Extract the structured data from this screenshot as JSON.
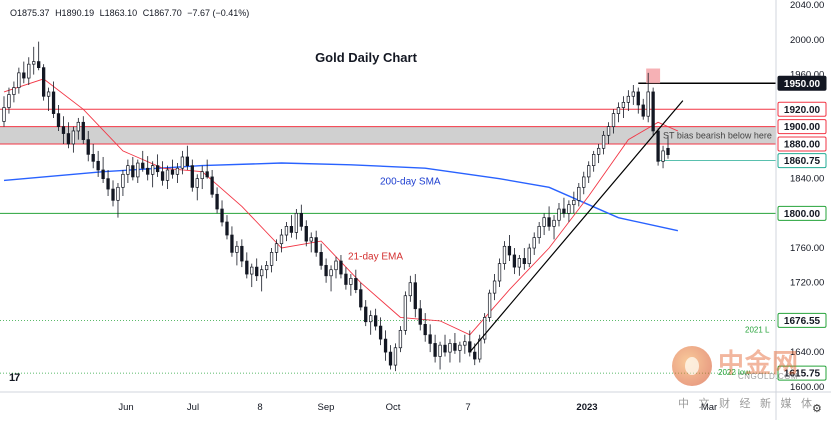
{
  "ohlc": {
    "open": "O1875.37",
    "high": "H1890.19",
    "low": "L1863.10",
    "close": "C1867.70",
    "change": "−7.67 (−0.41%)"
  },
  "tv_logo_label": "17",
  "watermark": {
    "cn": "中金网",
    "url": "CNGOLD.COM",
    "sub": "中 文 财 经 新 媒 体"
  },
  "colors": {
    "up": "#ffffff",
    "down": "#131722",
    "sma200": "#2962ff",
    "ema21": "#f23645",
    "resistance": "#f23645",
    "support": "#26a33a",
    "band": "#c8c8c8",
    "trend": "#000000",
    "marker": "#f4a3a8"
  },
  "chart_data": {
    "type": "candlestick",
    "title": "Gold Daily Chart",
    "x_ticks": [
      "Jun",
      "Jul",
      "8",
      "Sep",
      "Oct",
      "7",
      "2023",
      "Mar"
    ],
    "y_ticks": [
      2040,
      2000,
      1960,
      1920,
      1880,
      1840,
      1800,
      1760,
      1720,
      1680,
      1640,
      1600
    ],
    "ylim": [
      1594,
      2046
    ],
    "price_labels": [
      {
        "text": "1950.00",
        "value": 1950,
        "style": "dark"
      },
      {
        "text": "1920.00",
        "value": 1920,
        "style": "red"
      },
      {
        "text": "1900.00",
        "value": 1900,
        "style": "red"
      },
      {
        "text": "1880.00",
        "value": 1880,
        "style": "red"
      },
      {
        "text": "1860.75",
        "value": 1860.75,
        "style": "current"
      },
      {
        "text": "1800.00",
        "value": 1800,
        "style": "green"
      },
      {
        "text": "1676.55",
        "value": 1676.55,
        "style": "green"
      },
      {
        "text": "1615.75",
        "value": 1615.75,
        "style": "green"
      }
    ],
    "levels": [
      {
        "value": 1950,
        "type": "resistance"
      },
      {
        "value": 1920,
        "type": "resistance"
      },
      {
        "value": 1800,
        "type": "support"
      },
      {
        "value": 1676.55,
        "type": "dotted"
      },
      {
        "value": 1615.75,
        "type": "dotted"
      }
    ],
    "band": [
      1880,
      1900
    ],
    "annotations": [
      {
        "text": "ST bias bearish below here",
        "value": 1890
      },
      {
        "text": "200-day SMA",
        "value": 1837
      },
      {
        "text": "21-day EMA",
        "value": 1750
      },
      {
        "text": "2021 L",
        "value": 1666
      },
      {
        "text": "2022 low",
        "value": 1617
      }
    ],
    "ohlc_series": [
      [
        1906,
        1935,
        1900,
        1922
      ],
      [
        1922,
        1945,
        1915,
        1937
      ],
      [
        1937,
        1952,
        1928,
        1945
      ],
      [
        1945,
        1968,
        1938,
        1962
      ],
      [
        1962,
        1975,
        1950,
        1956
      ],
      [
        1956,
        1980,
        1948,
        1972
      ],
      [
        1972,
        1992,
        1960,
        1975
      ],
      [
        1975,
        1998,
        1965,
        1968
      ],
      [
        1968,
        1972,
        1930,
        1935
      ],
      [
        1935,
        1945,
        1918,
        1940
      ],
      [
        1940,
        1952,
        1910,
        1915
      ],
      [
        1915,
        1925,
        1895,
        1900
      ],
      [
        1900,
        1912,
        1880,
        1892
      ],
      [
        1892,
        1905,
        1875,
        1880
      ],
      [
        1880,
        1900,
        1870,
        1895
      ],
      [
        1895,
        1910,
        1885,
        1905
      ],
      [
        1905,
        1912,
        1880,
        1885
      ],
      [
        1885,
        1895,
        1860,
        1868
      ],
      [
        1868,
        1880,
        1852,
        1860
      ],
      [
        1860,
        1872,
        1842,
        1850
      ],
      [
        1850,
        1865,
        1835,
        1840
      ],
      [
        1840,
        1850,
        1820,
        1828
      ],
      [
        1828,
        1838,
        1808,
        1815
      ],
      [
        1815,
        1835,
        1795,
        1830
      ],
      [
        1830,
        1850,
        1820,
        1845
      ],
      [
        1845,
        1862,
        1835,
        1855
      ],
      [
        1855,
        1865,
        1838,
        1842
      ],
      [
        1842,
        1862,
        1835,
        1858
      ],
      [
        1858,
        1872,
        1848,
        1852
      ],
      [
        1852,
        1866,
        1838,
        1845
      ],
      [
        1845,
        1860,
        1830,
        1855
      ],
      [
        1855,
        1868,
        1842,
        1848
      ],
      [
        1848,
        1860,
        1832,
        1838
      ],
      [
        1838,
        1855,
        1828,
        1850
      ],
      [
        1850,
        1862,
        1840,
        1845
      ],
      [
        1845,
        1858,
        1835,
        1852
      ],
      [
        1852,
        1872,
        1845,
        1865
      ],
      [
        1865,
        1878,
        1850,
        1855
      ],
      [
        1855,
        1862,
        1825,
        1830
      ],
      [
        1830,
        1845,
        1815,
        1840
      ],
      [
        1840,
        1855,
        1828,
        1848
      ],
      [
        1848,
        1862,
        1840,
        1842
      ],
      [
        1842,
        1850,
        1818,
        1822
      ],
      [
        1822,
        1830,
        1800,
        1805
      ],
      [
        1805,
        1815,
        1785,
        1790
      ],
      [
        1790,
        1798,
        1770,
        1775
      ],
      [
        1775,
        1785,
        1750,
        1755
      ],
      [
        1755,
        1768,
        1740,
        1762
      ],
      [
        1762,
        1770,
        1738,
        1745
      ],
      [
        1745,
        1755,
        1725,
        1730
      ],
      [
        1730,
        1742,
        1715,
        1738
      ],
      [
        1738,
        1748,
        1722,
        1728
      ],
      [
        1728,
        1740,
        1710,
        1735
      ],
      [
        1735,
        1745,
        1725,
        1740
      ],
      [
        1740,
        1760,
        1732,
        1755
      ],
      [
        1755,
        1770,
        1745,
        1765
      ],
      [
        1765,
        1782,
        1755,
        1775
      ],
      [
        1775,
        1790,
        1768,
        1785
      ],
      [
        1785,
        1798,
        1772,
        1778
      ],
      [
        1778,
        1805,
        1770,
        1800
      ],
      [
        1800,
        1810,
        1780,
        1785
      ],
      [
        1785,
        1792,
        1762,
        1768
      ],
      [
        1768,
        1778,
        1755,
        1772
      ],
      [
        1772,
        1780,
        1750,
        1755
      ],
      [
        1755,
        1765,
        1735,
        1740
      ],
      [
        1740,
        1748,
        1720,
        1728
      ],
      [
        1728,
        1740,
        1710,
        1735
      ],
      [
        1735,
        1750,
        1725,
        1745
      ],
      [
        1745,
        1752,
        1725,
        1730
      ],
      [
        1730,
        1738,
        1712,
        1718
      ],
      [
        1718,
        1730,
        1705,
        1725
      ],
      [
        1725,
        1735,
        1708,
        1712
      ],
      [
        1712,
        1720,
        1688,
        1692
      ],
      [
        1692,
        1700,
        1670,
        1675
      ],
      [
        1675,
        1688,
        1660,
        1682
      ],
      [
        1682,
        1690,
        1665,
        1670
      ],
      [
        1670,
        1680,
        1648,
        1655
      ],
      [
        1655,
        1665,
        1630,
        1640
      ],
      [
        1640,
        1648,
        1620,
        1625
      ],
      [
        1625,
        1650,
        1618,
        1645
      ],
      [
        1645,
        1670,
        1640,
        1665
      ],
      [
        1665,
        1710,
        1660,
        1705
      ],
      [
        1705,
        1728,
        1698,
        1720
      ],
      [
        1720,
        1730,
        1680,
        1690
      ],
      [
        1690,
        1700,
        1665,
        1672
      ],
      [
        1672,
        1685,
        1652,
        1660
      ],
      [
        1660,
        1672,
        1640,
        1650
      ],
      [
        1650,
        1660,
        1628,
        1635
      ],
      [
        1635,
        1652,
        1620,
        1648
      ],
      [
        1648,
        1660,
        1635,
        1640
      ],
      [
        1640,
        1655,
        1628,
        1650
      ],
      [
        1650,
        1662,
        1638,
        1642
      ],
      [
        1642,
        1652,
        1628,
        1648
      ],
      [
        1648,
        1660,
        1638,
        1652
      ],
      [
        1652,
        1665,
        1635,
        1640
      ],
      [
        1640,
        1650,
        1625,
        1632
      ],
      [
        1632,
        1660,
        1628,
        1655
      ],
      [
        1655,
        1685,
        1650,
        1680
      ],
      [
        1680,
        1712,
        1675,
        1708
      ],
      [
        1708,
        1730,
        1700,
        1722
      ],
      [
        1722,
        1748,
        1715,
        1742
      ],
      [
        1742,
        1768,
        1735,
        1762
      ],
      [
        1762,
        1775,
        1745,
        1752
      ],
      [
        1752,
        1760,
        1730,
        1738
      ],
      [
        1738,
        1752,
        1728,
        1748
      ],
      [
        1748,
        1760,
        1735,
        1742
      ],
      [
        1742,
        1765,
        1738,
        1760
      ],
      [
        1760,
        1778,
        1752,
        1772
      ],
      [
        1772,
        1790,
        1765,
        1785
      ],
      [
        1785,
        1800,
        1775,
        1795
      ],
      [
        1795,
        1808,
        1780,
        1785
      ],
      [
        1785,
        1798,
        1770,
        1792
      ],
      [
        1792,
        1812,
        1785,
        1805
      ],
      [
        1805,
        1818,
        1795,
        1800
      ],
      [
        1800,
        1815,
        1790,
        1810
      ],
      [
        1810,
        1825,
        1800,
        1815
      ],
      [
        1815,
        1835,
        1808,
        1830
      ],
      [
        1830,
        1848,
        1822,
        1842
      ],
      [
        1842,
        1860,
        1835,
        1855
      ],
      [
        1855,
        1872,
        1848,
        1868
      ],
      [
        1868,
        1880,
        1858,
        1875
      ],
      [
        1875,
        1895,
        1868,
        1890
      ],
      [
        1890,
        1905,
        1880,
        1900
      ],
      [
        1900,
        1920,
        1892,
        1915
      ],
      [
        1915,
        1928,
        1905,
        1922
      ],
      [
        1922,
        1935,
        1910,
        1928
      ],
      [
        1928,
        1942,
        1918,
        1935
      ],
      [
        1935,
        1948,
        1925,
        1940
      ],
      [
        1940,
        1945,
        1915,
        1925
      ],
      [
        1925,
        1932,
        1908,
        1912
      ],
      [
        1912,
        1962,
        1905,
        1940
      ],
      [
        1940,
        1945,
        1890,
        1895
      ],
      [
        1895,
        1898,
        1855,
        1860
      ],
      [
        1860,
        1878,
        1852,
        1872
      ],
      [
        1875,
        1890,
        1863,
        1867.7
      ]
    ],
    "sma200": [
      [
        0,
        1838
      ],
      [
        20,
        1848
      ],
      [
        40,
        1855
      ],
      [
        56,
        1858
      ],
      [
        70,
        1856
      ],
      [
        85,
        1852
      ],
      [
        100,
        1840
      ],
      [
        110,
        1830
      ],
      [
        118,
        1810
      ],
      [
        124,
        1795
      ],
      [
        136,
        1780
      ]
    ],
    "ema21": [
      [
        0,
        1940
      ],
      [
        8,
        1955
      ],
      [
        16,
        1920
      ],
      [
        24,
        1872
      ],
      [
        32,
        1852
      ],
      [
        40,
        1848
      ],
      [
        48,
        1808
      ],
      [
        56,
        1760
      ],
      [
        64,
        1768
      ],
      [
        72,
        1720
      ],
      [
        80,
        1680
      ],
      [
        88,
        1676
      ],
      [
        94,
        1660
      ],
      [
        102,
        1712
      ],
      [
        110,
        1760
      ],
      [
        118,
        1820
      ],
      [
        126,
        1885
      ],
      [
        132,
        1905
      ],
      [
        136,
        1895
      ]
    ],
    "trendline": [
      [
        94,
        1640
      ],
      [
        137,
        1930
      ]
    ],
    "marker_rect": {
      "i0": 130,
      "i1": 132,
      "v0": 1950,
      "v1": 1967
    }
  }
}
